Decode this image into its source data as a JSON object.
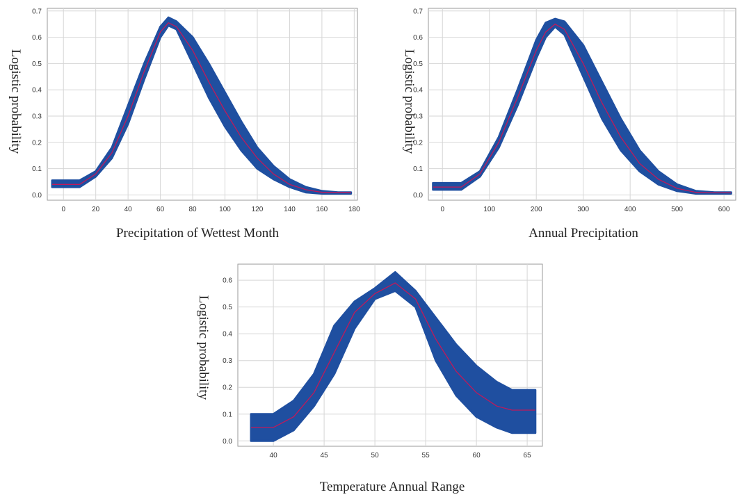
{
  "chart_data": [
    {
      "type": "line",
      "title": "",
      "xlabel": "Precipitation of Wettest Month",
      "ylabel": "Logistic probability",
      "xlim": [
        -10,
        182
      ],
      "ylim": [
        -0.02,
        0.71
      ],
      "xticks": [
        0,
        20,
        40,
        60,
        80,
        100,
        120,
        140,
        160,
        180
      ],
      "yticks": [
        0.0,
        0.1,
        0.2,
        0.3,
        0.4,
        0.5,
        0.6,
        0.7
      ],
      "grid": true,
      "colors": {
        "band": "#1f4fa0",
        "line": "#c0195a"
      },
      "series": [
        {
          "x": [
            -7,
            10,
            20,
            30,
            40,
            50,
            60,
            65,
            70,
            80,
            90,
            100,
            110,
            120,
            130,
            140,
            150,
            160,
            170,
            178
          ],
          "values": [
            0.04,
            0.04,
            0.08,
            0.16,
            0.3,
            0.47,
            0.62,
            0.655,
            0.64,
            0.55,
            0.43,
            0.32,
            0.22,
            0.14,
            0.08,
            0.04,
            0.02,
            0.01,
            0.01,
            0.01
          ]
        },
        {
          "x": [
            -7,
            10,
            20,
            30,
            40,
            50,
            60,
            65,
            70,
            80,
            90,
            100,
            110,
            120,
            130,
            140,
            150,
            160,
            170,
            178
          ],
          "values": [
            0.055,
            0.055,
            0.09,
            0.18,
            0.34,
            0.5,
            0.64,
            0.675,
            0.66,
            0.6,
            0.5,
            0.39,
            0.28,
            0.18,
            0.11,
            0.06,
            0.03,
            0.015,
            0.01,
            0.01
          ]
        },
        {
          "x": [
            -7,
            10,
            20,
            30,
            40,
            50,
            60,
            65,
            70,
            80,
            90,
            100,
            110,
            120,
            130,
            140,
            150,
            160,
            170,
            178
          ],
          "values": [
            0.03,
            0.03,
            0.07,
            0.14,
            0.27,
            0.44,
            0.6,
            0.645,
            0.63,
            0.5,
            0.37,
            0.26,
            0.17,
            0.1,
            0.06,
            0.03,
            0.01,
            0.005,
            0.005,
            0.005
          ]
        }
      ]
    },
    {
      "type": "line",
      "title": "",
      "xlabel": "Annual Precipitation",
      "ylabel": "Logistic probability",
      "xlim": [
        -30,
        625
      ],
      "ylim": [
        -0.02,
        0.71
      ],
      "xticks": [
        0,
        100,
        200,
        300,
        400,
        500,
        600
      ],
      "yticks": [
        0.0,
        0.1,
        0.2,
        0.3,
        0.4,
        0.5,
        0.6,
        0.7
      ],
      "grid": true,
      "colors": {
        "band": "#1f4fa0",
        "line": "#c0195a"
      },
      "series": [
        {
          "x": [
            -20,
            40,
            80,
            120,
            160,
            200,
            220,
            240,
            260,
            300,
            340,
            380,
            420,
            460,
            500,
            540,
            580,
            615
          ],
          "values": [
            0.03,
            0.03,
            0.08,
            0.2,
            0.37,
            0.55,
            0.62,
            0.65,
            0.63,
            0.5,
            0.35,
            0.22,
            0.12,
            0.06,
            0.025,
            0.01,
            0.008,
            0.008
          ]
        },
        {
          "x": [
            -20,
            40,
            80,
            120,
            160,
            200,
            220,
            240,
            260,
            300,
            340,
            380,
            420,
            460,
            500,
            540,
            580,
            615
          ],
          "values": [
            0.045,
            0.045,
            0.09,
            0.22,
            0.4,
            0.59,
            0.655,
            0.67,
            0.66,
            0.57,
            0.43,
            0.29,
            0.17,
            0.09,
            0.04,
            0.015,
            0.01,
            0.01
          ]
        },
        {
          "x": [
            -20,
            40,
            80,
            120,
            160,
            200,
            220,
            240,
            260,
            300,
            340,
            380,
            420,
            460,
            500,
            540,
            580,
            615
          ],
          "values": [
            0.02,
            0.02,
            0.07,
            0.18,
            0.34,
            0.52,
            0.6,
            0.64,
            0.61,
            0.45,
            0.29,
            0.17,
            0.09,
            0.04,
            0.015,
            0.005,
            0.005,
            0.005
          ]
        }
      ]
    },
    {
      "type": "line",
      "title": "",
      "xlabel": "Temperature Annual Range",
      "ylabel": "Logistic probability",
      "xlim": [
        36.5,
        66.5
      ],
      "ylim": [
        -0.02,
        0.66
      ],
      "xticks": [
        40,
        45,
        50,
        55,
        60,
        65
      ],
      "yticks": [
        0.0,
        0.1,
        0.2,
        0.3,
        0.4,
        0.5,
        0.6
      ],
      "grid": true,
      "colors": {
        "band": "#1f4fa0",
        "line": "#c0195a"
      },
      "series": [
        {
          "x": [
            37.8,
            40,
            42,
            44,
            46,
            48,
            50,
            52,
            54,
            56,
            58,
            60,
            62,
            63.5,
            65.8
          ],
          "values": [
            0.05,
            0.05,
            0.09,
            0.18,
            0.33,
            0.48,
            0.55,
            0.59,
            0.53,
            0.38,
            0.26,
            0.18,
            0.13,
            0.115,
            0.115
          ]
        },
        {
          "x": [
            37.8,
            40,
            42,
            44,
            46,
            48,
            50,
            52,
            54,
            56,
            58,
            60,
            62,
            63.5,
            65.8
          ],
          "values": [
            0.1,
            0.1,
            0.15,
            0.25,
            0.43,
            0.52,
            0.57,
            0.63,
            0.56,
            0.46,
            0.36,
            0.28,
            0.22,
            0.19,
            0.19
          ]
        },
        {
          "x": [
            37.8,
            40,
            42,
            44,
            46,
            48,
            50,
            52,
            54,
            56,
            58,
            60,
            62,
            63.5,
            65.8
          ],
          "values": [
            0.0,
            0.0,
            0.04,
            0.13,
            0.25,
            0.42,
            0.53,
            0.56,
            0.5,
            0.3,
            0.17,
            0.09,
            0.05,
            0.03,
            0.03
          ]
        }
      ]
    }
  ]
}
